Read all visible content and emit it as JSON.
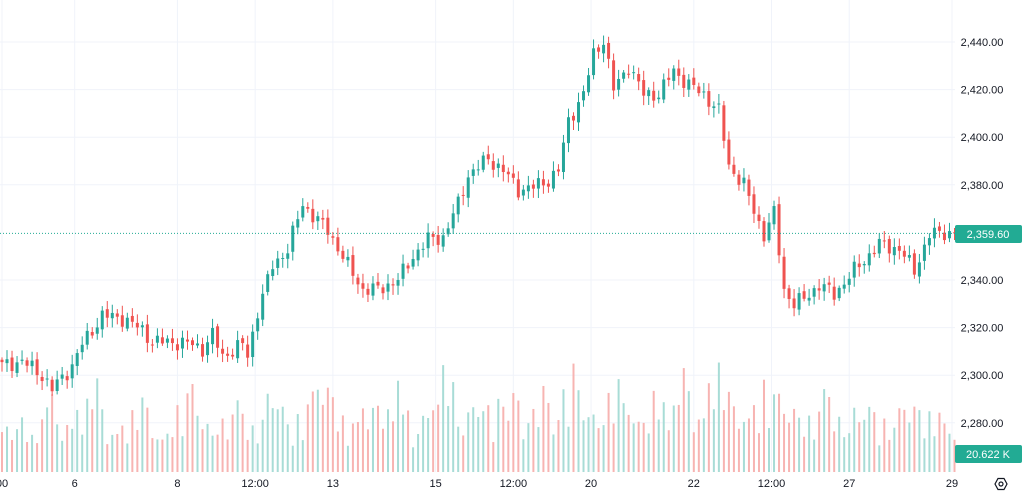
{
  "chart_data": {
    "type": "candlestick",
    "title": "",
    "y_axis": {
      "ticks": [
        2440,
        2420,
        2400,
        2380,
        2340,
        2320,
        2300,
        2280
      ],
      "tick_labels": [
        "2,440.00",
        "2,420.00",
        "2,400.00",
        "2,380.00",
        "2,340.00",
        "2,320.00",
        "2,300.00",
        "2,280.00"
      ],
      "ylim": [
        2272,
        2456
      ]
    },
    "x_axis": {
      "tick_labels": [
        "00",
        "6",
        "8",
        "12:00",
        "13",
        "15",
        "12:00",
        "20",
        "22",
        "12:00",
        "27",
        "29"
      ],
      "tick_index": [
        0,
        14.5,
        35,
        50.5,
        66,
        86.5,
        102,
        117.5,
        138,
        153.5,
        169,
        189.5
      ]
    },
    "grid": true,
    "candle_count": 191,
    "close_path": {
      "index": [
        0,
        4,
        8,
        10,
        14,
        16,
        20,
        24,
        28,
        30,
        34,
        38,
        40,
        42,
        44,
        48,
        49,
        51,
        54,
        57,
        60,
        62,
        65,
        69,
        72,
        75,
        79,
        82,
        85,
        88,
        91,
        93,
        97,
        100,
        103,
        106,
        109,
        111,
        113,
        116,
        118,
        120,
        122,
        125,
        128,
        131,
        134,
        137,
        140,
        143,
        145,
        148,
        150,
        152,
        154,
        156,
        158,
        160,
        163,
        166,
        170,
        175,
        179,
        182,
        185,
        188,
        190
      ],
      "close": [
        2304,
        2306,
        2300,
        2294,
        2304,
        2313,
        2325,
        2324,
        2319,
        2314,
        2314,
        2313,
        2311,
        2317,
        2308,
        2313,
        2308,
        2327,
        2346,
        2353,
        2372,
        2367,
        2361,
        2346,
        2336,
        2336,
        2340,
        2350,
        2357,
        2358,
        2372,
        2384,
        2391,
        2386,
        2378,
        2379,
        2382,
        2386,
        2407,
        2418,
        2435,
        2441,
        2420,
        2430,
        2418,
        2418,
        2428,
        2422,
        2418,
        2411,
        2388,
        2380,
        2369,
        2359,
        2368,
        2336,
        2330,
        2332,
        2338,
        2334,
        2344,
        2355,
        2353,
        2344,
        2359,
        2360,
        2359.6
      ]
    },
    "volume_path_k": [
      28,
      40,
      22,
      55,
      30,
      45,
      60,
      25,
      38,
      50,
      20,
      42,
      58,
      30,
      35,
      48,
      25,
      62,
      33,
      40,
      70,
      45,
      30,
      52,
      38,
      60,
      28,
      44,
      75,
      35,
      50,
      40,
      66,
      30,
      58,
      42,
      72,
      36,
      48,
      62,
      30,
      55,
      40,
      68,
      34,
      80,
      45,
      38,
      60,
      50,
      42,
      35,
      58,
      28,
      48,
      40,
      30,
      55,
      36,
      44,
      20.622
    ],
    "current_price": 2359.6,
    "current_price_label": "2,359.60",
    "current_volume_label": "20.622 K",
    "colors": {
      "up": "#26a69a",
      "down": "#ef5350",
      "up_volume": "#a8dcd6",
      "down_volume": "#f7b4b2",
      "price_label_bg": "#22ab94",
      "grid": "#f0f3fa",
      "text": "#131722"
    }
  },
  "settings_icon": "settings-hexagon-icon"
}
